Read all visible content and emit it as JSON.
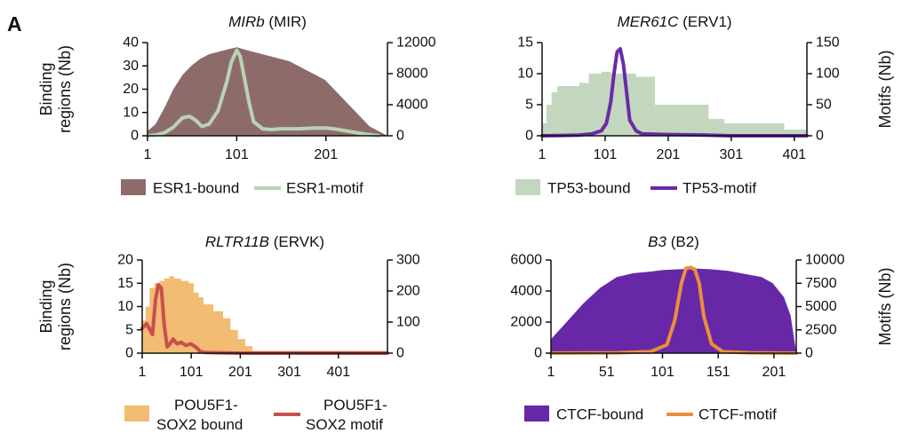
{
  "panel_label": "A",
  "chart_data": [
    {
      "type": "area",
      "title_italic": "MIRb",
      "title_rest": " (MIR)",
      "ylabel": "Binding regions (Nb)",
      "y2label": "",
      "ylim": [
        0,
        40
      ],
      "yticks": [
        0,
        10,
        20,
        30,
        40
      ],
      "y2lim": [
        0,
        12000
      ],
      "y2ticks": [
        0,
        4000,
        8000,
        12000
      ],
      "xlim": [
        1,
        270
      ],
      "xticks": [
        1,
        101,
        201
      ],
      "colors": {
        "bound": "#8e6b6b",
        "motif": "#b9d3b4"
      },
      "legend": [
        {
          "label": "ESR1-bound",
          "kind": "box"
        },
        {
          "label": "ESR1-motif",
          "kind": "line"
        }
      ],
      "series": [
        {
          "axis": "left",
          "style": "fill",
          "x": [
            1,
            10,
            20,
            30,
            40,
            50,
            60,
            70,
            80,
            90,
            101,
            110,
            120,
            130,
            140,
            150,
            160,
            170,
            180,
            190,
            200,
            210,
            220,
            230,
            240,
            250,
            260,
            270
          ],
          "y": [
            2,
            5,
            12,
            20,
            26,
            30,
            33,
            35,
            36,
            37,
            38,
            37,
            36,
            35,
            34,
            33,
            32,
            30,
            28,
            26,
            24,
            20,
            16,
            12,
            8,
            4,
            2,
            0
          ]
        },
        {
          "axis": "right",
          "style": "line",
          "x": [
            1,
            10,
            20,
            30,
            40,
            48,
            55,
            62,
            70,
            80,
            90,
            95,
            101,
            105,
            110,
            115,
            120,
            130,
            140,
            150,
            170,
            190,
            200,
            210,
            220,
            230,
            245,
            260
          ],
          "y": [
            0,
            100,
            400,
            1100,
            2300,
            2500,
            2000,
            1200,
            1500,
            3200,
            7000,
            9500,
            11000,
            10200,
            7200,
            4200,
            1800,
            900,
            800,
            900,
            900,
            1000,
            1000,
            900,
            700,
            500,
            200,
            0
          ]
        }
      ]
    },
    {
      "type": "area",
      "title_italic": "MER61C",
      "title_rest": " (ERV1)",
      "ylabel": "",
      "y2label": "Motifs (Nb)",
      "ylim": [
        0,
        15
      ],
      "yticks": [
        0,
        5,
        10,
        15
      ],
      "y2lim": [
        0,
        150
      ],
      "y2ticks": [
        0,
        50,
        100,
        150
      ],
      "xlim": [
        1,
        421
      ],
      "xticks": [
        1,
        101,
        201,
        301,
        401
      ],
      "colors": {
        "bound": "#c3d7bf",
        "motif": "#6a2aa6"
      },
      "legend": [
        {
          "label": "TP53-bound",
          "kind": "box"
        },
        {
          "label": "TP53-motif",
          "kind": "line"
        }
      ],
      "series": [
        {
          "axis": "left",
          "style": "step",
          "x": [
            1,
            8,
            16,
            25,
            60,
            75,
            95,
            110,
            140,
            150,
            180,
            260,
            265,
            290,
            385,
            421
          ],
          "y": [
            2,
            5,
            7,
            8,
            8.5,
            10,
            10.3,
            10,
            10,
            9.5,
            5,
            5,
            2.7,
            2,
            1,
            0
          ]
        },
        {
          "axis": "right",
          "style": "line",
          "x": [
            1,
            60,
            80,
            95,
            103,
            110,
            115,
            120,
            125,
            130,
            135,
            140,
            150,
            160,
            200,
            260,
            300,
            421
          ],
          "y": [
            0,
            1,
            3,
            8,
            20,
            55,
            100,
            135,
            140,
            115,
            70,
            25,
            8,
            3,
            2,
            1,
            0,
            0
          ]
        }
      ]
    },
    {
      "type": "area",
      "title_italic": "RLTR11B",
      "title_rest": " (ERVK)",
      "ylabel": "Binding regions (Nb)",
      "y2label": "",
      "ylim": [
        0,
        20
      ],
      "yticks": [
        0,
        5,
        10,
        15,
        20
      ],
      "y2lim": [
        0,
        300
      ],
      "y2ticks": [
        0,
        100,
        200,
        300
      ],
      "xlim": [
        1,
        501
      ],
      "xticks": [
        1,
        101,
        201,
        301,
        401
      ],
      "colors": {
        "bound": "#f2bc73",
        "motif": "#c9504c"
      },
      "legend": [
        {
          "label": "POU5F1- SOX2 bound",
          "label_line1": "POU5F1-",
          "label_line2": "SOX2 bound",
          "kind": "box"
        },
        {
          "label": "POU5F1- SOX2 motif",
          "label_line1": "POU5F1-",
          "label_line2": "SOX2 motif",
          "kind": "line"
        }
      ],
      "series": [
        {
          "axis": "left",
          "style": "step",
          "x": [
            1,
            8,
            16,
            26,
            36,
            46,
            56,
            66,
            80,
            96,
            106,
            116,
            126,
            146,
            166,
            181,
            196,
            211,
            226,
            501
          ],
          "y": [
            7,
            10,
            14,
            15,
            15.5,
            16,
            16.5,
            16,
            15.5,
            15,
            13,
            12,
            10.5,
            9,
            7.5,
            5,
            3,
            1.5,
            0.5,
            0
          ]
        },
        {
          "axis": "right",
          "style": "line",
          "x": [
            1,
            10,
            22,
            28,
            34,
            40,
            46,
            52,
            58,
            64,
            72,
            80,
            90,
            100,
            110,
            120,
            130,
            200,
            501
          ],
          "y": [
            80,
            95,
            60,
            170,
            220,
            210,
            90,
            20,
            30,
            45,
            30,
            35,
            25,
            30,
            20,
            5,
            2,
            0,
            0
          ]
        }
      ]
    },
    {
      "type": "area",
      "title_italic": "B3",
      "title_rest": " (B2)",
      "ylabel": "",
      "y2label": "Motifs (Nb)",
      "ylim": [
        0,
        6000
      ],
      "yticks": [
        0,
        2000,
        4000,
        6000
      ],
      "y2lim": [
        0,
        10000
      ],
      "y2ticks": [
        0,
        2500,
        5000,
        7500,
        10000
      ],
      "xlim": [
        1,
        221
      ],
      "xticks": [
        1,
        51,
        101,
        151,
        201
      ],
      "colors": {
        "bound": "#6727a6",
        "motif": "#eb8f3c"
      },
      "legend": [
        {
          "label": "CTCF-bound",
          "kind": "box"
        },
        {
          "label": "CTCF-motif",
          "kind": "line"
        }
      ],
      "series": [
        {
          "axis": "left",
          "style": "fill",
          "x": [
            1,
            15,
            30,
            45,
            60,
            75,
            90,
            101,
            115,
            130,
            145,
            160,
            175,
            190,
            200,
            210,
            216,
            221
          ],
          "y": [
            900,
            2000,
            3200,
            4200,
            4900,
            5150,
            5250,
            5350,
            5400,
            5450,
            5400,
            5300,
            5100,
            4900,
            4500,
            3600,
            2400,
            0
          ]
        },
        {
          "axis": "right",
          "style": "line",
          "x": [
            1,
            60,
            90,
            105,
            112,
            118,
            122,
            126,
            130,
            134,
            138,
            145,
            155,
            180,
            221
          ],
          "y": [
            0,
            30,
            150,
            900,
            3500,
            7500,
            9100,
            9200,
            9000,
            7500,
            4000,
            1000,
            150,
            30,
            0
          ]
        }
      ]
    }
  ]
}
